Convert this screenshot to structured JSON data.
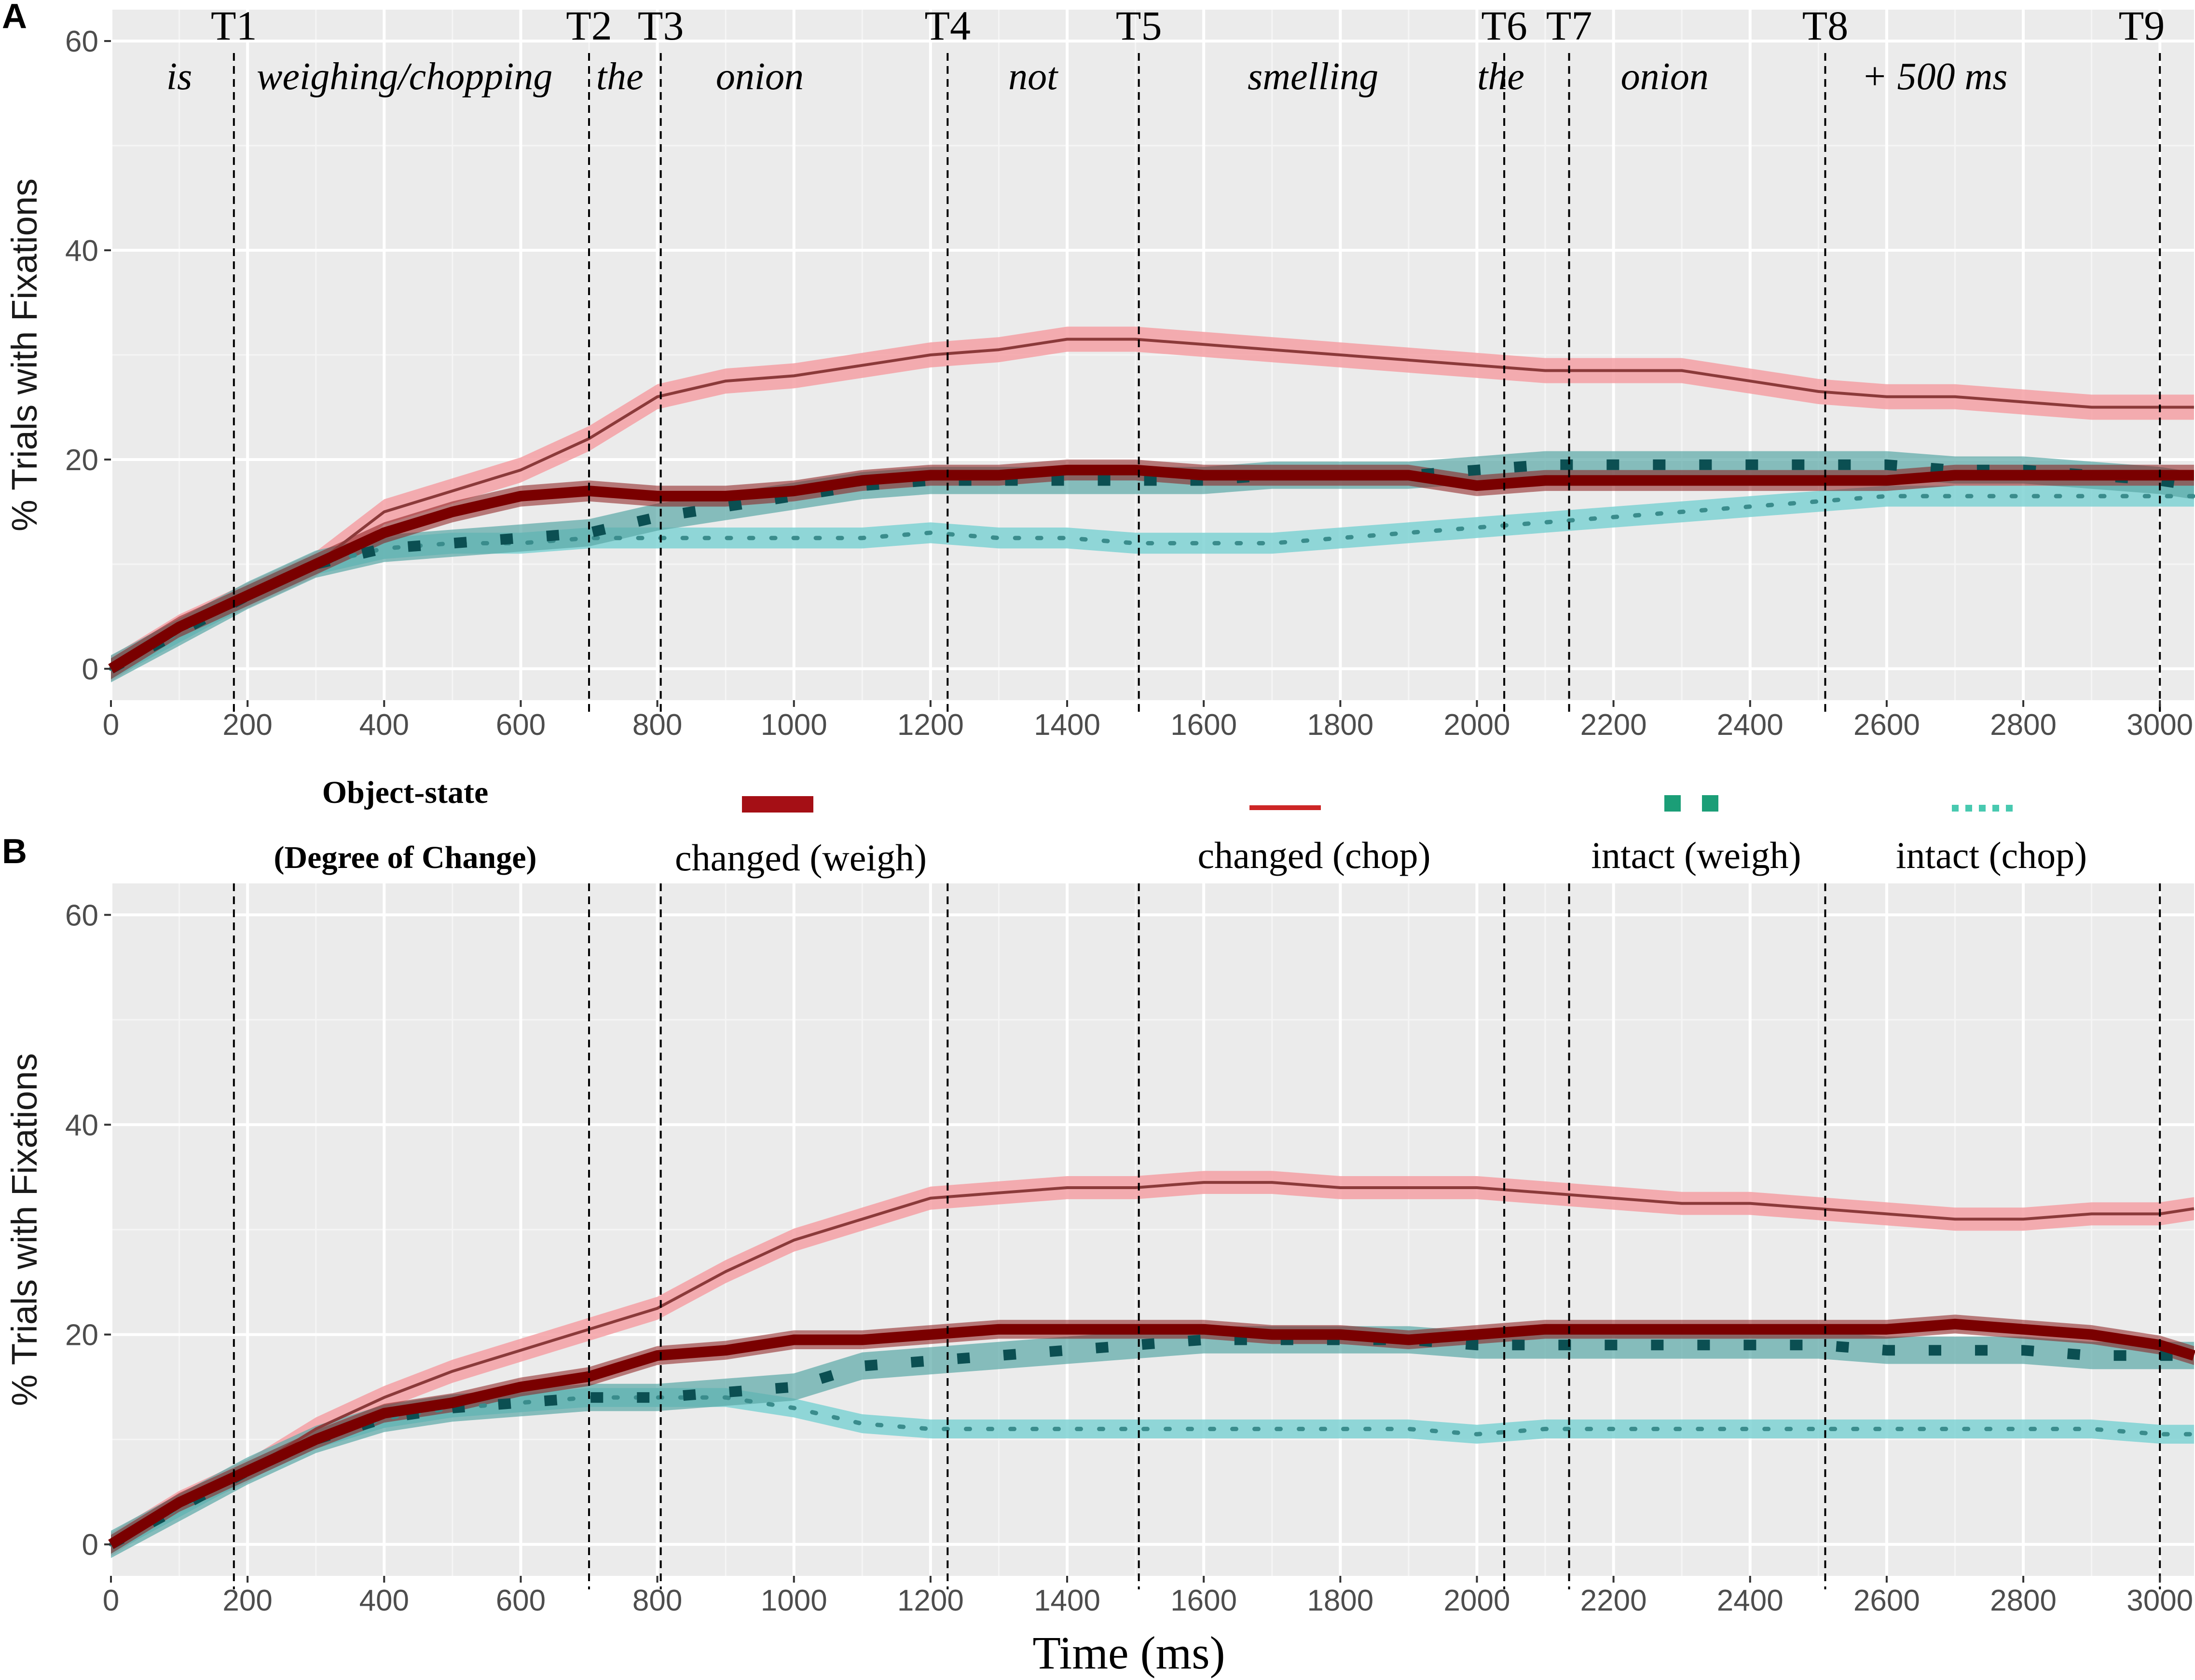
{
  "chart_data": {
    "type": "line",
    "xlabel": "Time (ms)",
    "ylabel": "% Trials with Fixations",
    "xlim": [
      0,
      3050
    ],
    "ylim": [
      -3,
      63
    ],
    "xticks": [
      0,
      200,
      400,
      600,
      800,
      1000,
      1200,
      1400,
      1600,
      1800,
      2000,
      2200,
      2400,
      2600,
      2800,
      3000
    ],
    "yticks": [
      0,
      20,
      40,
      60
    ],
    "markers": [
      {
        "label": "T1",
        "x": 180
      },
      {
        "label": "T2",
        "x": 700
      },
      {
        "label": "T3",
        "x": 805
      },
      {
        "label": "T4",
        "x": 1225
      },
      {
        "label": "T5",
        "x": 1505
      },
      {
        "label": "T6",
        "x": 2040
      },
      {
        "label": "T7",
        "x": 2135
      },
      {
        "label": "T8",
        "x": 2510
      },
      {
        "label": "T9",
        "x": 3000
      }
    ],
    "words": [
      {
        "text": "is",
        "x": 100
      },
      {
        "text": "weighing/chopping",
        "x": 430
      },
      {
        "text": "the",
        "x": 745
      },
      {
        "text": "onion",
        "x": 950
      },
      {
        "text": "not",
        "x": 1350
      },
      {
        "text": "smelling",
        "x": 1760
      },
      {
        "text": "the",
        "x": 2035
      },
      {
        "text": "onion",
        "x": 2275
      },
      {
        "text": "+ 500 ms",
        "x": 2670
      }
    ],
    "legend": {
      "title_line1": "Object-state",
      "title_line2": "(Degree of Change)",
      "entries": [
        {
          "key": "changed_weigh",
          "label": "changed (weigh)",
          "color": "#a50f15",
          "style": "thick-solid"
        },
        {
          "key": "changed_chop",
          "label": "changed (chop)",
          "color": "#cd2626",
          "style": "thin-solid"
        },
        {
          "key": "intact_weigh",
          "label": "intact (weigh)",
          "color": "#1b9e77",
          "style": "thick-dashed"
        },
        {
          "key": "intact_chop",
          "label": "intact (chop)",
          "color": "#48c9b0",
          "style": "dotted"
        }
      ]
    },
    "panels": [
      {
        "tag": "A",
        "series": [
          {
            "name": "changed (weigh)",
            "key": "changed_weigh",
            "x": [
              0,
              100,
              200,
              300,
              400,
              500,
              600,
              700,
              800,
              900,
              1000,
              1100,
              1200,
              1300,
              1400,
              1500,
              1600,
              1700,
              1800,
              1900,
              2000,
              2100,
              2200,
              2300,
              2400,
              2500,
              2600,
              2700,
              2800,
              2900,
              3000,
              3050
            ],
            "y": [
              0,
              4,
              7,
              10,
              13,
              15,
              16.5,
              17,
              16.5,
              16.5,
              17,
              18,
              18.5,
              18.5,
              19,
              19,
              18.5,
              18.5,
              18.5,
              18.5,
              17.5,
              18,
              18,
              18,
              18,
              18,
              18,
              18.5,
              18.5,
              18.5,
              18.5,
              18.5
            ],
            "band": 1.0
          },
          {
            "name": "changed (chop)",
            "key": "changed_chop",
            "x": [
              0,
              100,
              200,
              300,
              400,
              500,
              600,
              700,
              800,
              900,
              1000,
              1100,
              1200,
              1300,
              1400,
              1500,
              1600,
              1700,
              1800,
              1900,
              2000,
              2100,
              2200,
              2300,
              2400,
              2500,
              2600,
              2700,
              2800,
              2900,
              3000,
              3050
            ],
            "y": [
              0,
              4,
              7,
              10,
              15,
              17,
              19,
              22,
              26,
              27.5,
              28,
              29,
              30,
              30.5,
              31.5,
              31.5,
              31,
              30.5,
              30,
              29.5,
              29,
              28.5,
              28.5,
              28.5,
              27.5,
              26.5,
              26,
              26,
              25.5,
              25,
              25,
              25
            ],
            "band": 1.2
          },
          {
            "name": "intact (weigh)",
            "key": "intact_weigh",
            "x": [
              0,
              100,
              200,
              300,
              400,
              500,
              600,
              700,
              800,
              900,
              1000,
              1100,
              1200,
              1300,
              1400,
              1500,
              1600,
              1700,
              1800,
              1900,
              2000,
              2100,
              2200,
              2300,
              2400,
              2500,
              2600,
              2700,
              2800,
              2900,
              3000,
              3050
            ],
            "y": [
              0,
              3.5,
              7,
              10,
              11.5,
              12,
              12.5,
              13,
              14.5,
              15.5,
              16.5,
              17.5,
              18,
              18,
              18,
              18,
              18,
              18.5,
              18.5,
              18.5,
              19,
              19.5,
              19.5,
              19.5,
              19.5,
              19.5,
              19.5,
              19,
              19,
              18.5,
              18,
              17.5
            ],
            "band": 1.3
          },
          {
            "name": "intact (chop)",
            "key": "intact_chop",
            "x": [
              0,
              100,
              200,
              300,
              400,
              500,
              600,
              700,
              800,
              900,
              1000,
              1100,
              1200,
              1300,
              1400,
              1500,
              1600,
              1700,
              1800,
              1900,
              2000,
              2100,
              2200,
              2300,
              2400,
              2500,
              2600,
              2700,
              2800,
              2900,
              3000,
              3050
            ],
            "y": [
              0,
              3.5,
              7,
              10,
              11.5,
              12,
              12,
              12.5,
              12.5,
              12.5,
              12.5,
              12.5,
              13,
              12.5,
              12.5,
              12,
              12,
              12,
              12.5,
              13,
              13.5,
              14,
              14.5,
              15,
              15.5,
              16,
              16.5,
              16.5,
              16.5,
              16.5,
              16.5,
              16.5
            ],
            "band": 1.0
          }
        ]
      },
      {
        "tag": "B",
        "series": [
          {
            "name": "changed (weigh)",
            "key": "changed_weigh",
            "x": [
              0,
              100,
              200,
              300,
              400,
              500,
              600,
              700,
              800,
              900,
              1000,
              1100,
              1200,
              1300,
              1400,
              1500,
              1600,
              1700,
              1800,
              1900,
              2000,
              2100,
              2200,
              2300,
              2400,
              2500,
              2600,
              2700,
              2800,
              2900,
              3000,
              3050
            ],
            "y": [
              0,
              4,
              7,
              10,
              12.5,
              13.5,
              15,
              16,
              18,
              18.5,
              19.5,
              19.5,
              20,
              20.5,
              20.5,
              20.5,
              20.5,
              20,
              20,
              19.5,
              20,
              20.5,
              20.5,
              20.5,
              20.5,
              20.5,
              20.5,
              21,
              20.5,
              20,
              19,
              18
            ],
            "band": 0.9
          },
          {
            "name": "changed (chop)",
            "key": "changed_chop",
            "x": [
              0,
              100,
              200,
              300,
              400,
              500,
              600,
              700,
              800,
              900,
              1000,
              1100,
              1200,
              1300,
              1400,
              1500,
              1600,
              1700,
              1800,
              1900,
              2000,
              2100,
              2200,
              2300,
              2400,
              2500,
              2600,
              2700,
              2800,
              2900,
              3000,
              3050
            ],
            "y": [
              0,
              4,
              7,
              11,
              14,
              16.5,
              18.5,
              20.5,
              22.5,
              26,
              29,
              31,
              33,
              33.5,
              34,
              34,
              34.5,
              34.5,
              34,
              34,
              34,
              33.5,
              33,
              32.5,
              32.5,
              32,
              31.5,
              31,
              31,
              31.5,
              31.5,
              32
            ],
            "band": 1.1
          },
          {
            "name": "intact (weigh)",
            "key": "intact_weigh",
            "x": [
              0,
              100,
              200,
              300,
              400,
              500,
              600,
              700,
              800,
              900,
              1000,
              1100,
              1200,
              1300,
              1400,
              1500,
              1600,
              1700,
              1800,
              1900,
              2000,
              2100,
              2200,
              2300,
              2400,
              2500,
              2600,
              2700,
              2800,
              2900,
              3000,
              3050
            ],
            "y": [
              0,
              3.5,
              7,
              10,
              12,
              13,
              13.5,
              14,
              14,
              14.5,
              15,
              17,
              17.5,
              18,
              18.5,
              19,
              19.5,
              19.5,
              19.5,
              19.5,
              19,
              19,
              19,
              19,
              19,
              19,
              18.5,
              18.5,
              18.5,
              18,
              18,
              18
            ],
            "band": 1.3
          },
          {
            "name": "intact (chop)",
            "key": "intact_chop",
            "x": [
              0,
              100,
              200,
              300,
              400,
              500,
              600,
              700,
              800,
              900,
              1000,
              1100,
              1200,
              1300,
              1400,
              1500,
              1600,
              1700,
              1800,
              1900,
              2000,
              2100,
              2200,
              2300,
              2400,
              2500,
              2600,
              2700,
              2800,
              2900,
              3000,
              3050
            ],
            "y": [
              0,
              3.5,
              7,
              10,
              12,
              13,
              13.5,
              14,
              14,
              14,
              13,
              11.5,
              11,
              11,
              11,
              11,
              11,
              11,
              11,
              11,
              10.5,
              11,
              11,
              11,
              11,
              11,
              11,
              11,
              11,
              11,
              10.5,
              10.5
            ],
            "band": 0.9
          }
        ]
      }
    ]
  }
}
